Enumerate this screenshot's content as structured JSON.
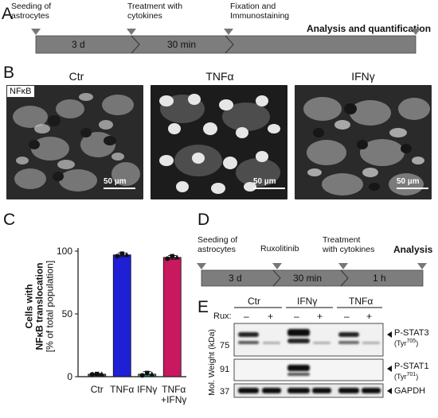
{
  "panels": {
    "a": "A",
    "b": "B",
    "c": "C",
    "d": "D",
    "e": "E"
  },
  "panelA": {
    "steps": [
      "Seeding of\nastrocytes",
      "Treatment with\ncytokines",
      "Fixation and\nImmunostaining"
    ],
    "step1a": "Seeding of",
    "step1b": "astrocytes",
    "step2a": "Treatment with",
    "step2b": "cytokines",
    "step3a": "Fixation and",
    "step3b": "Immunostaining",
    "seg1": "3 d",
    "seg2": "30 min",
    "analysis": "Analysis and quantification"
  },
  "panelB": {
    "tag": "NFκB",
    "titles": [
      "Ctr",
      "TNFα",
      "IFNγ"
    ],
    "scale": "50 µm"
  },
  "chart_data": {
    "type": "bar",
    "categories": [
      "Ctr",
      "TNFα",
      "IFNγ",
      "TNFα +IFNγ"
    ],
    "tick_labels": [
      "Ctr",
      "TNFα",
      "IFNγ",
      "TNFα",
      "+IFNγ"
    ],
    "values": [
      2,
      97,
      2,
      95
    ],
    "errors": [
      0.5,
      1.5,
      2,
      1.5
    ],
    "points": [
      [
        1.8,
        2.2,
        2.0
      ],
      [
        96,
        98,
        97
      ],
      [
        1,
        3,
        2
      ],
      [
        94,
        96,
        95
      ]
    ],
    "colors": [
      "#555555",
      "#1f1fd6",
      "#2e8f7a",
      "#c8185e"
    ],
    "ylabel_line1": "Cells with",
    "ylabel_line2": "NFκB translocation",
    "ylabel_line3": "[% of total population]",
    "ylim": [
      0,
      100
    ],
    "yticks": [
      "0",
      "50",
      "100"
    ]
  },
  "panelD": {
    "step1a": "Seeding of",
    "step1b": "astrocytes",
    "step2": "Ruxolitinib",
    "step3a": "Treatment",
    "step3b": "with cytokines",
    "analysis": "Analysis",
    "seg1": "3 d",
    "seg2": "30 min",
    "seg3": "1 h"
  },
  "panelE": {
    "groups": [
      "Ctr",
      "IFNγ",
      "TNFα"
    ],
    "rux_label": "Rux:",
    "minus": "–",
    "plus": "+",
    "mw_axis": "Mol. Weight (kDa)",
    "mw": [
      "75",
      "91",
      "37"
    ],
    "band1": "P-STAT3",
    "band1_sub": "(Tyr",
    "band1_sup": "705",
    "band1_close": ")",
    "band2": "P-STAT1",
    "band2_sub": "(Tyr",
    "band2_sup": "701",
    "band2_close": ")",
    "band3": "GAPDH"
  }
}
